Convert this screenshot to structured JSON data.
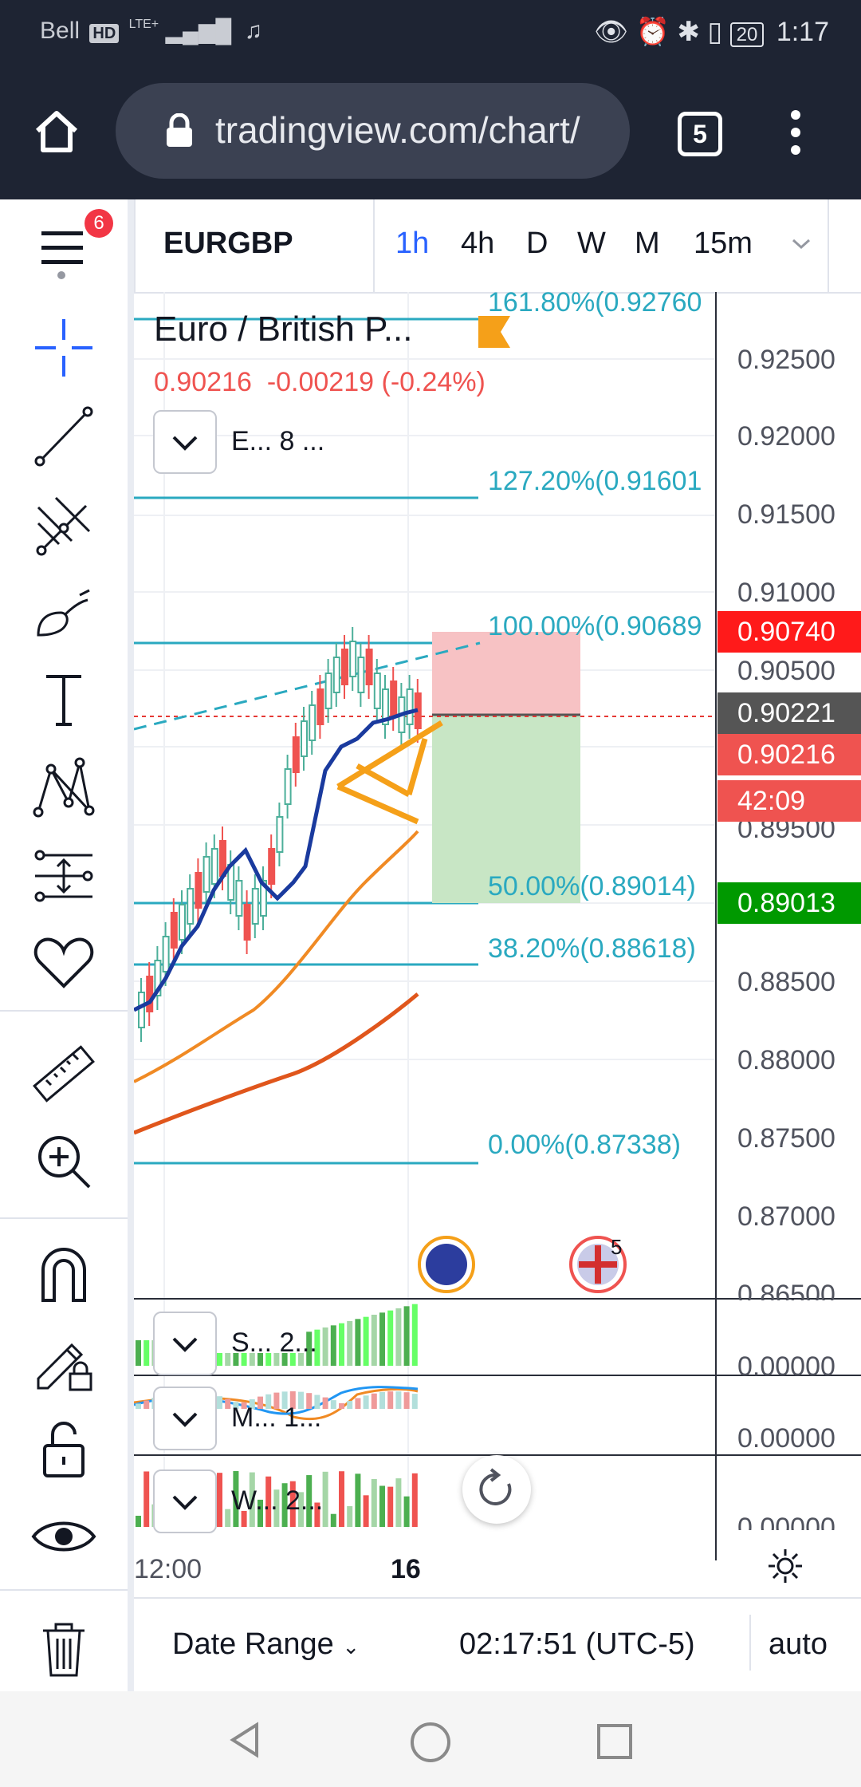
{
  "status_bar": {
    "carrier": "Bell",
    "hd_badge": "HD",
    "network": "LTE+",
    "battery": "20",
    "time": "1:17"
  },
  "browser": {
    "url": "tradingview.com/chart/",
    "tab_count": "5"
  },
  "toolbar": {
    "notification_count": "6",
    "symbol": "EURGBP",
    "timeframes": [
      "1h",
      "4h",
      "D",
      "W",
      "M",
      "15m"
    ],
    "active_timeframe": "1h"
  },
  "legend": {
    "title": "Euro / British P...",
    "price": "0.90216",
    "change": "-0.00219",
    "change_pct": "(-0.24%)",
    "indicators_collapsed": "E... 8 ..."
  },
  "fib_levels": [
    {
      "label": "161.80%(0.92760"
    },
    {
      "label": "127.20%(0.91601"
    },
    {
      "label": "100.00%(0.90689"
    },
    {
      "label": "50.00%(0.89014)"
    },
    {
      "label": "38.20%(0.88618)"
    },
    {
      "label": "0.00%(0.87338)"
    }
  ],
  "price_axis": {
    "ticks": [
      "0.92500",
      "0.92000",
      "0.91500",
      "0.91000",
      "0.90500",
      "0.89500",
      "0.88500",
      "0.88000",
      "0.87500",
      "0.87000",
      "0.86500"
    ],
    "badges": {
      "stop": "0.90740",
      "last": "0.90221",
      "bid": "0.90216",
      "countdown": "42:09",
      "target": "0.89013"
    }
  },
  "panels": [
    {
      "label": "S... 2...",
      "value": "0.00000"
    },
    {
      "label": "M... 1...",
      "value": "0.00000"
    },
    {
      "label": "W... 2...",
      "value": "0.00000"
    }
  ],
  "time_axis": {
    "labels": [
      "12:00",
      "16"
    ]
  },
  "event_badges": {
    "gb_count": "5"
  },
  "bottom_bar": {
    "date_range": "Date Range",
    "clock": "02:17:51 (UTC-5)",
    "scale_mode": "auto"
  },
  "colors": {
    "accent": "#2962ff",
    "fib": "#2aa9c0",
    "stop_red": "#ff1a1a",
    "target_green": "#009900",
    "bid_red": "#ef5350",
    "orange": "#ff9800"
  }
}
